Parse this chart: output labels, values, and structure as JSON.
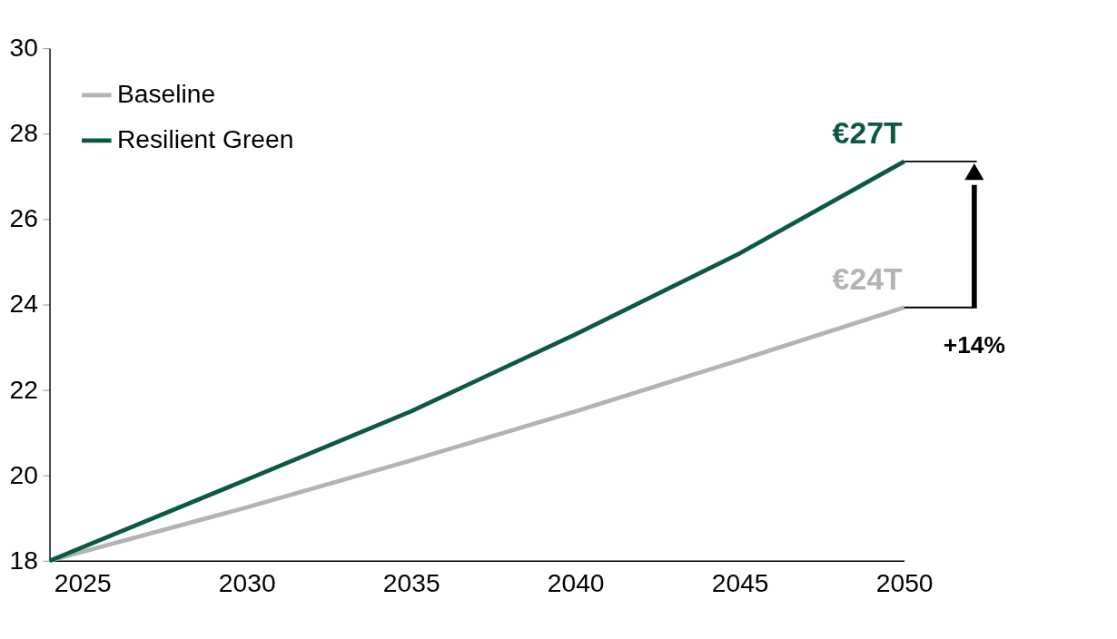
{
  "chart_data": {
    "type": "line",
    "x": [
      2024,
      2030,
      2035,
      2040,
      2045,
      2050
    ],
    "series": [
      {
        "name": "Baseline",
        "color": "#b3b3b3",
        "values": [
          18,
          19.25,
          20.35,
          21.5,
          22.7,
          23.93
        ],
        "value_labels": [
          null,
          null,
          null,
          null,
          null,
          "€24T"
        ]
      },
      {
        "name": "Resilient Green",
        "color": "#0b5a3c",
        "values": [
          18,
          19.9,
          21.5,
          23.3,
          25.2,
          27.35
        ],
        "value_labels": [
          null,
          null,
          null,
          null,
          null,
          "€27T"
        ]
      }
    ],
    "xlim": [
      2024,
      2050
    ],
    "xticks": [
      2025,
      2030,
      2035,
      2040,
      2045,
      2050
    ],
    "ylim": [
      18,
      30
    ],
    "yticks": [
      18,
      20,
      22,
      24,
      26,
      28,
      30
    ],
    "annotations": [
      "+14%"
    ],
    "grid": false,
    "legend": "top left",
    "marker": "none",
    "line_style": "solid"
  }
}
